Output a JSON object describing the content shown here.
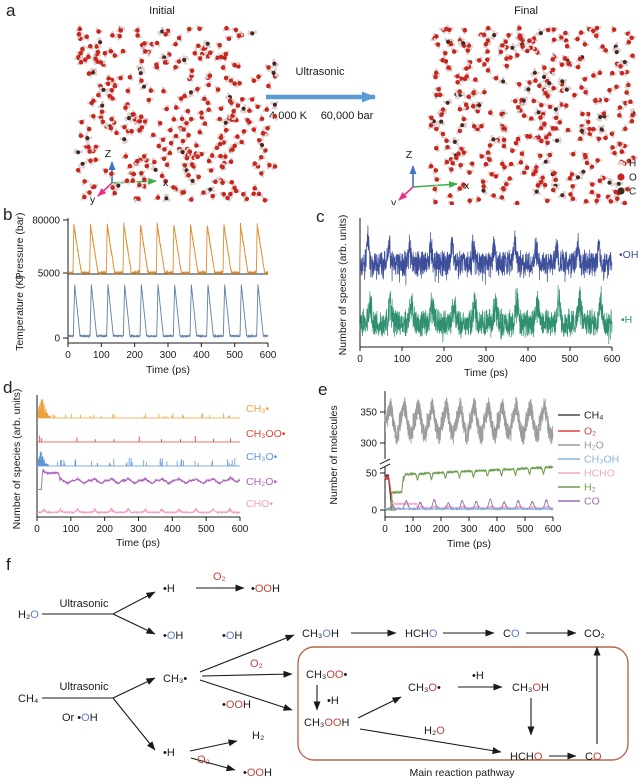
{
  "panels": {
    "a": {
      "label": "a",
      "initial_title": "Initial",
      "final_title": "Final",
      "process": "Ultrasonic",
      "temperature": "4,000 K",
      "pressure": "60,000 bar",
      "triad": {
        "up": "Z",
        "right": "x",
        "depth": "y"
      },
      "atom_legend": [
        {
          "symbol": "H",
          "color": "#ddd1d1"
        },
        {
          "symbol": "O",
          "color": "#c9271e"
        },
        {
          "symbol": "C",
          "color": "#46281e"
        }
      ]
    },
    "b": {
      "label": "b"
    },
    "c": {
      "label": "c"
    },
    "d": {
      "label": "d"
    },
    "e": {
      "label": "e"
    },
    "f": {
      "label": "f"
    }
  },
  "colors": {
    "formula_blue": "#5b7ec8",
    "formula_red": "#c0453c",
    "pathway_box": "#b5684c",
    "process_arrow": "#5b9bd5",
    "axis": "#1a1a1a",
    "triad_z": "#4472c4",
    "triad_x": "#3fae49",
    "triad_y": "#e8318a"
  },
  "chart_data": [
    {
      "id": "b",
      "type": "line",
      "xlabel": "Time (ps)",
      "ylabels": [
        "Pressure (bar)",
        "Temperature (K)"
      ],
      "y_tick_labels": [
        "80000",
        "5000",
        "0"
      ],
      "x_ticks": [
        0,
        100,
        200,
        300,
        400,
        500,
        600
      ],
      "xlim": [
        0,
        600
      ],
      "cycle_period_ps": 50,
      "series": [
        {
          "name": "Pressure",
          "color": "#dd8c2e",
          "ylim": [
            5000,
            80000
          ],
          "baseline": 5500,
          "peak": 73000
        },
        {
          "name": "Temperature",
          "color": "#5f7ea3",
          "ylim": [
            0,
            5000
          ],
          "baseline": 300,
          "peak": 4200
        }
      ]
    },
    {
      "id": "c",
      "type": "line",
      "xlabel": "Time (ps)",
      "ylabel": "Number of species (arb. units)",
      "x_ticks": [
        0,
        100,
        200,
        300,
        400,
        500,
        600
      ],
      "xlim": [
        0,
        600
      ],
      "cycle_period_ps": 50,
      "series": [
        {
          "name": "•OH",
          "color": "#3d4f9b"
        },
        {
          "name": "•H",
          "color": "#2e9070"
        }
      ]
    },
    {
      "id": "d",
      "type": "line",
      "xlabel": "Time (ps)",
      "ylabel": "Number of species (arb. units)",
      "x_ticks": [
        0,
        100,
        200,
        300,
        400,
        500,
        600
      ],
      "xlim": [
        0,
        600
      ],
      "cycle_period_ps": 50,
      "series": [
        {
          "name": "CH₃•",
          "color": "#eda13d",
          "style": "burst-then-sparse-spikes"
        },
        {
          "name": "CH₃OO•",
          "color": "#e0453b",
          "style": "sparse-spikes"
        },
        {
          "name": "CH₃O•",
          "color": "#5d95d6",
          "style": "burst-and-periodic-spikes"
        },
        {
          "name": "CH₂O•",
          "color": "#a964b8",
          "style": "step-line"
        },
        {
          "name": "CHO•",
          "color": "#ef9ec6",
          "style": "low-noise-line"
        }
      ]
    },
    {
      "id": "e",
      "type": "line",
      "xlabel": "Time (ps)",
      "ylabel": "Number of molecules",
      "x_ticks": [
        0,
        100,
        200,
        300,
        400,
        500,
        600
      ],
      "y_ticks": [
        0,
        50,
        300,
        350
      ],
      "axis_break": true,
      "xlim": [
        0,
        600
      ],
      "cycle_period_ps": 50,
      "series": [
        {
          "name": "CH₄",
          "color": "#4a4a4a",
          "start": 46,
          "end": 0
        },
        {
          "name": "O₂",
          "color": "#d84040",
          "start": 43,
          "end": 0
        },
        {
          "name": "H₂O",
          "color": "#9c9c9c",
          "range": [
            295,
            370
          ]
        },
        {
          "name": "CH₃OH",
          "color": "#8ab4dc",
          "range": [
            0,
            3
          ]
        },
        {
          "name": "HCHO",
          "color": "#f2a8c8",
          "range": [
            0,
            9
          ]
        },
        {
          "name": "H₂",
          "color": "#6f9c50",
          "plateau1": 24,
          "plateau2": 48,
          "final": 58
        },
        {
          "name": "CO",
          "color": "#9d6cb4",
          "range": [
            0,
            15
          ]
        }
      ]
    }
  ],
  "panel_f": {
    "caption": "Main reaction pathway",
    "nodes": {
      "h2o_src": {
        "parts": [
          [
            "H₂",
            "k"
          ],
          [
            "O",
            "b"
          ]
        ]
      },
      "ultrasonic1": {
        "parts": [
          [
            "Ultrasonic",
            "k"
          ]
        ]
      },
      "h_rad1": {
        "parts": [
          [
            "•H",
            "k"
          ]
        ]
      },
      "o2_a": {
        "parts": [
          [
            "O₂",
            "r"
          ]
        ]
      },
      "ooh_a": {
        "parts": [
          [
            "•",
            "k"
          ],
          [
            "OO",
            "r"
          ],
          [
            "H",
            "k"
          ]
        ]
      },
      "oh_rad1": {
        "parts": [
          [
            "•",
            "k"
          ],
          [
            "O",
            "b"
          ],
          [
            "H",
            "k"
          ]
        ]
      },
      "ch4_src": {
        "parts": [
          [
            "CH₄",
            "k"
          ]
        ]
      },
      "ultrasonic2": {
        "parts": [
          [
            "Ultrasonic",
            "k"
          ]
        ]
      },
      "or_oh": {
        "parts": [
          [
            "Or •",
            "k"
          ],
          [
            "O",
            "b"
          ],
          [
            "H",
            "k"
          ]
        ]
      },
      "ch3_rad": {
        "parts": [
          [
            "CH₃•",
            "k"
          ]
        ]
      },
      "oh_lbl": {
        "parts": [
          [
            "•",
            "k"
          ],
          [
            "O",
            "b"
          ],
          [
            "H",
            "k"
          ]
        ]
      },
      "o2_b": {
        "parts": [
          [
            "O₂",
            "r"
          ]
        ]
      },
      "ooh_lbl": {
        "parts": [
          [
            "•",
            "k"
          ],
          [
            "OO",
            "r"
          ],
          [
            "H",
            "k"
          ]
        ]
      },
      "h_rad2": {
        "parts": [
          [
            "•H",
            "k"
          ]
        ]
      },
      "h2_prod": {
        "parts": [
          [
            "H₂",
            "k"
          ]
        ]
      },
      "o2_c": {
        "parts": [
          [
            "O₂",
            "r"
          ]
        ]
      },
      "ooh_c": {
        "parts": [
          [
            "•",
            "k"
          ],
          [
            "OO",
            "r"
          ],
          [
            "H",
            "k"
          ]
        ]
      },
      "ch3oh_blue": {
        "parts": [
          [
            "CH₃",
            "k"
          ],
          [
            "O",
            "b"
          ],
          [
            "H",
            "k"
          ]
        ]
      },
      "hcho_blue": {
        "parts": [
          [
            "HCH",
            "k"
          ],
          [
            "O",
            "b"
          ]
        ]
      },
      "co_blue": {
        "parts": [
          [
            "C",
            "k"
          ],
          [
            "O",
            "b"
          ]
        ]
      },
      "co2": {
        "parts": [
          [
            "CO₂",
            "k"
          ]
        ]
      },
      "ch3oo": {
        "parts": [
          [
            "CH₃",
            "k"
          ],
          [
            "OO",
            "r"
          ],
          [
            "•",
            "k"
          ]
        ]
      },
      "h_lbl1": {
        "parts": [
          [
            "•H",
            "k"
          ]
        ]
      },
      "ch3ooh": {
        "parts": [
          [
            "CH₃",
            "k"
          ],
          [
            "OO",
            "r"
          ],
          [
            "H",
            "k"
          ]
        ]
      },
      "ch3o_rad": {
        "parts": [
          [
            "CH₃",
            "k"
          ],
          [
            "O",
            "r"
          ],
          [
            "•",
            "k"
          ]
        ]
      },
      "h_lbl2": {
        "parts": [
          [
            "•H",
            "k"
          ]
        ]
      },
      "ch3oh_red": {
        "parts": [
          [
            "CH₃",
            "k"
          ],
          [
            "O",
            "r"
          ],
          [
            "H",
            "k"
          ]
        ]
      },
      "h2o_lbl": {
        "parts": [
          [
            "H₂",
            "k"
          ],
          [
            "O",
            "r"
          ]
        ]
      },
      "hcho_red": {
        "parts": [
          [
            "HCH",
            "k"
          ],
          [
            "O",
            "r"
          ]
        ]
      },
      "co_red": {
        "parts": [
          [
            "C",
            "k"
          ],
          [
            "O",
            "r"
          ]
        ]
      }
    }
  }
}
